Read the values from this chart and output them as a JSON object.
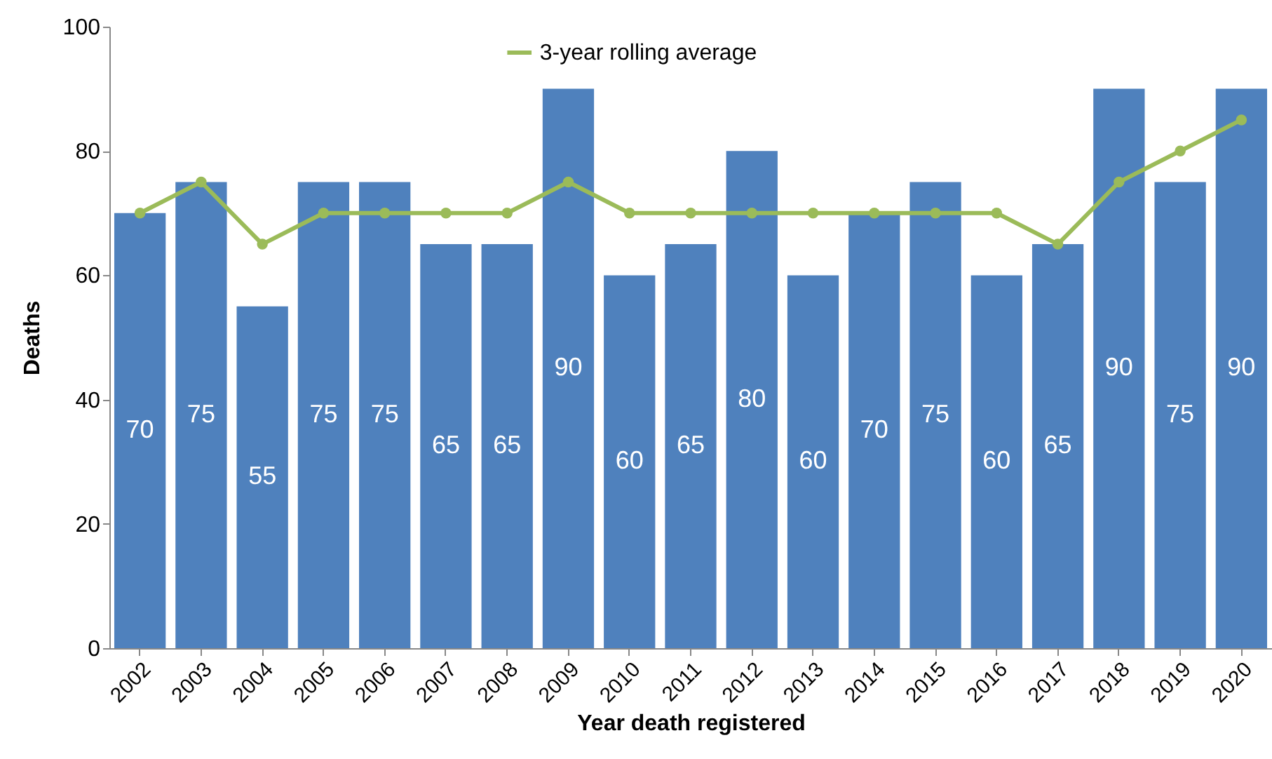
{
  "chart_data": {
    "type": "bar",
    "xlabel": "Year death registered",
    "ylabel": "Deaths",
    "categories": [
      "2002",
      "2003",
      "2004",
      "2005",
      "2006",
      "2007",
      "2008",
      "2009",
      "2010",
      "2011",
      "2012",
      "2013",
      "2014",
      "2015",
      "2016",
      "2017",
      "2018",
      "2019",
      "2020"
    ],
    "series": [
      {
        "color": "#4f81bd",
        "values": [
          70,
          75,
          55,
          75,
          75,
          65,
          65,
          90,
          60,
          65,
          80,
          60,
          70,
          75,
          60,
          65,
          90,
          75,
          90
        ],
        "value_labels": [
          "70",
          "75",
          "55",
          "75",
          "75",
          "65",
          "65",
          "90",
          "60",
          "65",
          "80",
          "60",
          "70",
          "75",
          "60",
          "65",
          "90",
          "75",
          "90"
        ]
      },
      {
        "type": "line",
        "name": "3-year rolling average",
        "color": "#9bbb59",
        "marker": "circle",
        "values": [
          70,
          75,
          65,
          70,
          70,
          70,
          70,
          75,
          70,
          70,
          70,
          70,
          70,
          70,
          70,
          65,
          75,
          80,
          85
        ]
      }
    ],
    "ylim": [
      0,
      100
    ],
    "yticks": [
      0,
      20,
      40,
      60,
      80,
      100
    ],
    "grid": false,
    "legend": "top"
  }
}
